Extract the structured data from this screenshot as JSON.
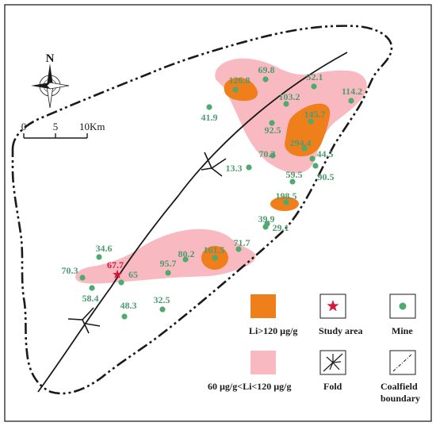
{
  "compass": {
    "north_label": "N"
  },
  "scale_bar": {
    "label_0": "0",
    "label_5": "5",
    "label_10": "10Km"
  },
  "colors": {
    "pink_zone": "#f9b9c0",
    "orange_zone": "#ef7f1a",
    "mine": "#4eaa6e",
    "label": "#4e9b72",
    "study_area": "#d6163a",
    "border": "#1a1a1a"
  },
  "mines": [
    {
      "value": "126.8"
    },
    {
      "value": "69.8"
    },
    {
      "value": "52.1"
    },
    {
      "value": "114.2"
    },
    {
      "value": "103.2"
    },
    {
      "value": "41.9"
    },
    {
      "value": "92.5"
    },
    {
      "value": "145.7"
    },
    {
      "value": "294.4"
    },
    {
      "value": "70.3"
    },
    {
      "value": "44.5"
    },
    {
      "value": "13.3"
    },
    {
      "value": "90.5"
    },
    {
      "value": "59.5"
    },
    {
      "value": "198.5"
    },
    {
      "value": "39.9"
    },
    {
      "value": "29.1"
    },
    {
      "value": "71.7"
    },
    {
      "value": "34.6"
    },
    {
      "value": "80.2"
    },
    {
      "value": "161.5"
    },
    {
      "value": "95.7"
    },
    {
      "value": "70.3"
    },
    {
      "value": "65"
    },
    {
      "value": "58.4"
    },
    {
      "value": "48.3"
    },
    {
      "value": "32.5"
    }
  ],
  "study_area": {
    "value": "67.7"
  },
  "legend": {
    "high_li": "Li>120  µg/g",
    "study_area": "Study area",
    "mine": "Mine",
    "mid_li": "60  µg/g<Li<120  µg/g",
    "fold": "Fold",
    "coalfield_line1": "Coalfield",
    "coalfield_line2": "boundary"
  }
}
